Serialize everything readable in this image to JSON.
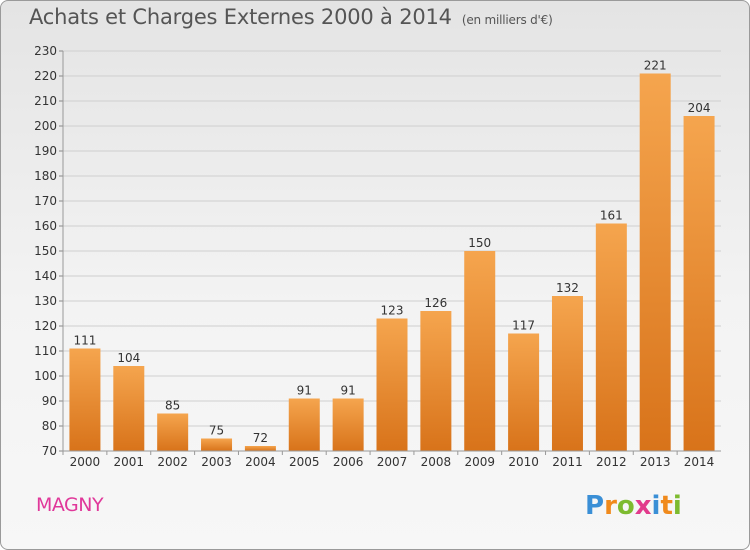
{
  "header": {
    "title": "Achats et Charges Externes 2000 à 2014",
    "unit": "(en milliers d'€)"
  },
  "commune": "MAGNY",
  "logo": {
    "text": "Proxiti",
    "letters": [
      {
        "ch": "P",
        "color": "#3a8fd6"
      },
      {
        "ch": "r",
        "color": "#f08a1c"
      },
      {
        "ch": "o",
        "color": "#7dbb2f"
      },
      {
        "ch": "x",
        "color": "#e23b8c"
      },
      {
        "ch": "i",
        "color": "#3a8fd6"
      },
      {
        "ch": "t",
        "color": "#f08a1c"
      },
      {
        "ch": "i",
        "color": "#7dbb2f"
      }
    ]
  },
  "colors": {
    "bar_top": "#f5a54e",
    "bar_bottom": "#d8731a",
    "grid": "#cfcfcf",
    "text": "#333333",
    "commune": "#e0389a"
  },
  "chart_data": {
    "type": "bar",
    "title": "Achats et Charges Externes 2000 à 2014",
    "subtitle": "(en milliers d'€)",
    "xlabel": "",
    "ylabel": "",
    "categories": [
      "2000",
      "2001",
      "2002",
      "2003",
      "2004",
      "2005",
      "2006",
      "2007",
      "2008",
      "2009",
      "2010",
      "2011",
      "2012",
      "2013",
      "2014"
    ],
    "values": [
      111,
      104,
      85,
      75,
      72,
      91,
      91,
      123,
      126,
      150,
      117,
      132,
      161,
      221,
      204
    ],
    "ylim": [
      70,
      230
    ],
    "yticks": [
      70,
      80,
      90,
      100,
      110,
      120,
      130,
      140,
      150,
      160,
      170,
      180,
      190,
      200,
      210,
      220,
      230
    ],
    "grid": true,
    "data_labels": true
  }
}
